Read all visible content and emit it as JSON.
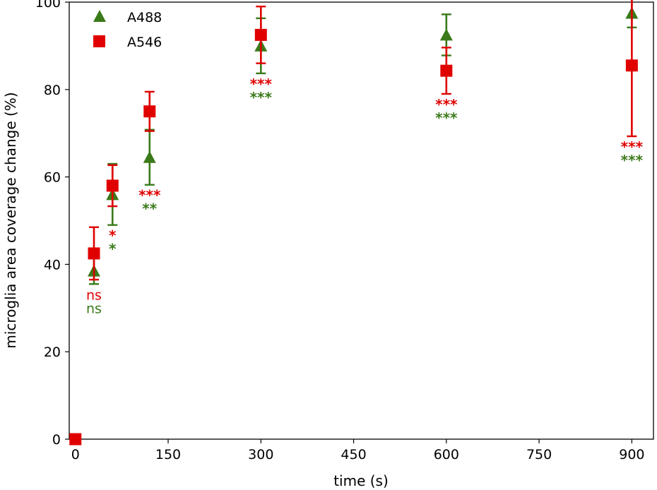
{
  "chart_data": {
    "type": "scatter",
    "title": "",
    "xlabel": "time (s)",
    "ylabel": "microglia area coverage change (%)",
    "xlim": [
      -10,
      935
    ],
    "ylim": [
      0,
      100
    ],
    "xticks": [
      0,
      150,
      300,
      450,
      600,
      750,
      900
    ],
    "yticks": [
      0,
      20,
      40,
      60,
      80,
      100
    ],
    "grid": false,
    "legend_position": "top-left",
    "series": [
      {
        "name": "A488",
        "color": "#3a7a1a",
        "marker": "triangle",
        "points": [
          {
            "x": 0,
            "y": 0,
            "err": 0,
            "sig": ""
          },
          {
            "x": 30,
            "y": 38.5,
            "err": 3.0,
            "sig": "ns"
          },
          {
            "x": 60,
            "y": 56,
            "err": 7.0,
            "sig": "*"
          },
          {
            "x": 120,
            "y": 64.5,
            "err": 6.3,
            "sig": "**"
          },
          {
            "x": 300,
            "y": 90,
            "err": 6.3,
            "sig": "***"
          },
          {
            "x": 600,
            "y": 92.5,
            "err": 4.7,
            "sig": "***"
          },
          {
            "x": 900,
            "y": 97.5,
            "err": 3.3,
            "sig": "***"
          }
        ]
      },
      {
        "name": "A546",
        "color": "#e00000",
        "marker": "square",
        "points": [
          {
            "x": 0,
            "y": 0,
            "err": 0,
            "sig": ""
          },
          {
            "x": 30,
            "y": 42.5,
            "err": 6.0,
            "sig": "ns"
          },
          {
            "x": 60,
            "y": 58,
            "err": 4.7,
            "sig": "*"
          },
          {
            "x": 120,
            "y": 75,
            "err": 4.5,
            "sig": "***"
          },
          {
            "x": 300,
            "y": 92.5,
            "err": 6.5,
            "sig": "***"
          },
          {
            "x": 600,
            "y": 84.3,
            "err": 5.3,
            "sig": "***"
          },
          {
            "x": 900,
            "y": 85.5,
            "err": 16.2,
            "sig": "***"
          }
        ]
      }
    ]
  }
}
